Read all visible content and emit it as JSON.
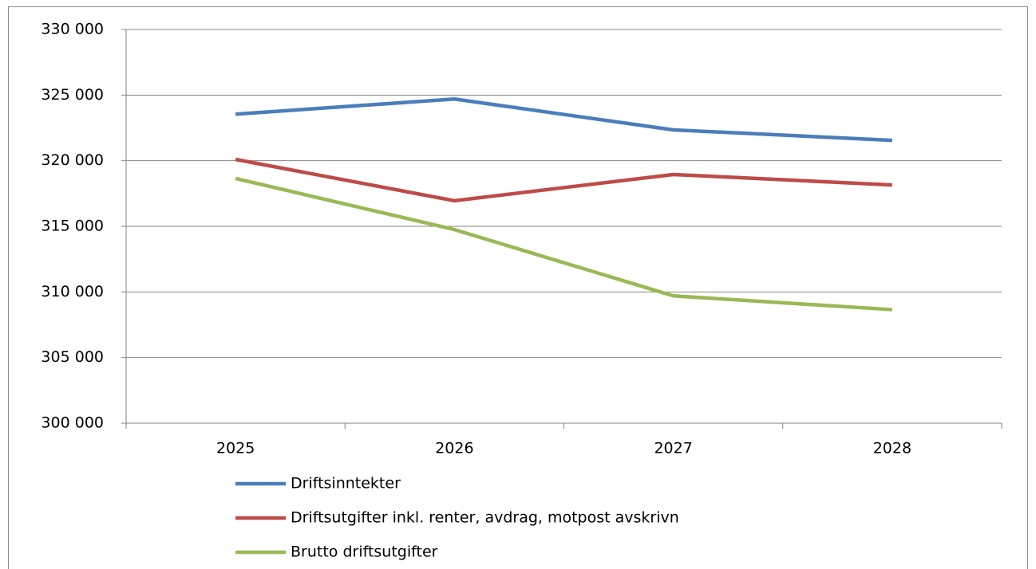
{
  "chart_data": {
    "type": "line",
    "categories": [
      "2025",
      "2026",
      "2027",
      "2028"
    ],
    "series": [
      {
        "name": "Driftsinntekter",
        "color": "#4a7ebb",
        "values": [
          323550,
          324700,
          322350,
          321550
        ]
      },
      {
        "name": "Driftsutgifter inkl. renter, avdrag, motpost avskrivn",
        "color": "#be4b48",
        "values": [
          320100,
          316950,
          318950,
          318150
        ]
      },
      {
        "name": "Brutto driftsutgifter",
        "color": "#98b954",
        "values": [
          318650,
          314750,
          309700,
          308650
        ]
      }
    ],
    "ylim": [
      300000,
      330000
    ],
    "yticks": [
      {
        "value": 300000,
        "label": "300 000"
      },
      {
        "value": 305000,
        "label": "305 000"
      },
      {
        "value": 310000,
        "label": "310 000"
      },
      {
        "value": 315000,
        "label": "315 000"
      },
      {
        "value": 320000,
        "label": "320 000"
      },
      {
        "value": 325000,
        "label": "325 000"
      },
      {
        "value": 330000,
        "label": "330 000"
      }
    ],
    "grid": true,
    "legend": "bottom"
  }
}
